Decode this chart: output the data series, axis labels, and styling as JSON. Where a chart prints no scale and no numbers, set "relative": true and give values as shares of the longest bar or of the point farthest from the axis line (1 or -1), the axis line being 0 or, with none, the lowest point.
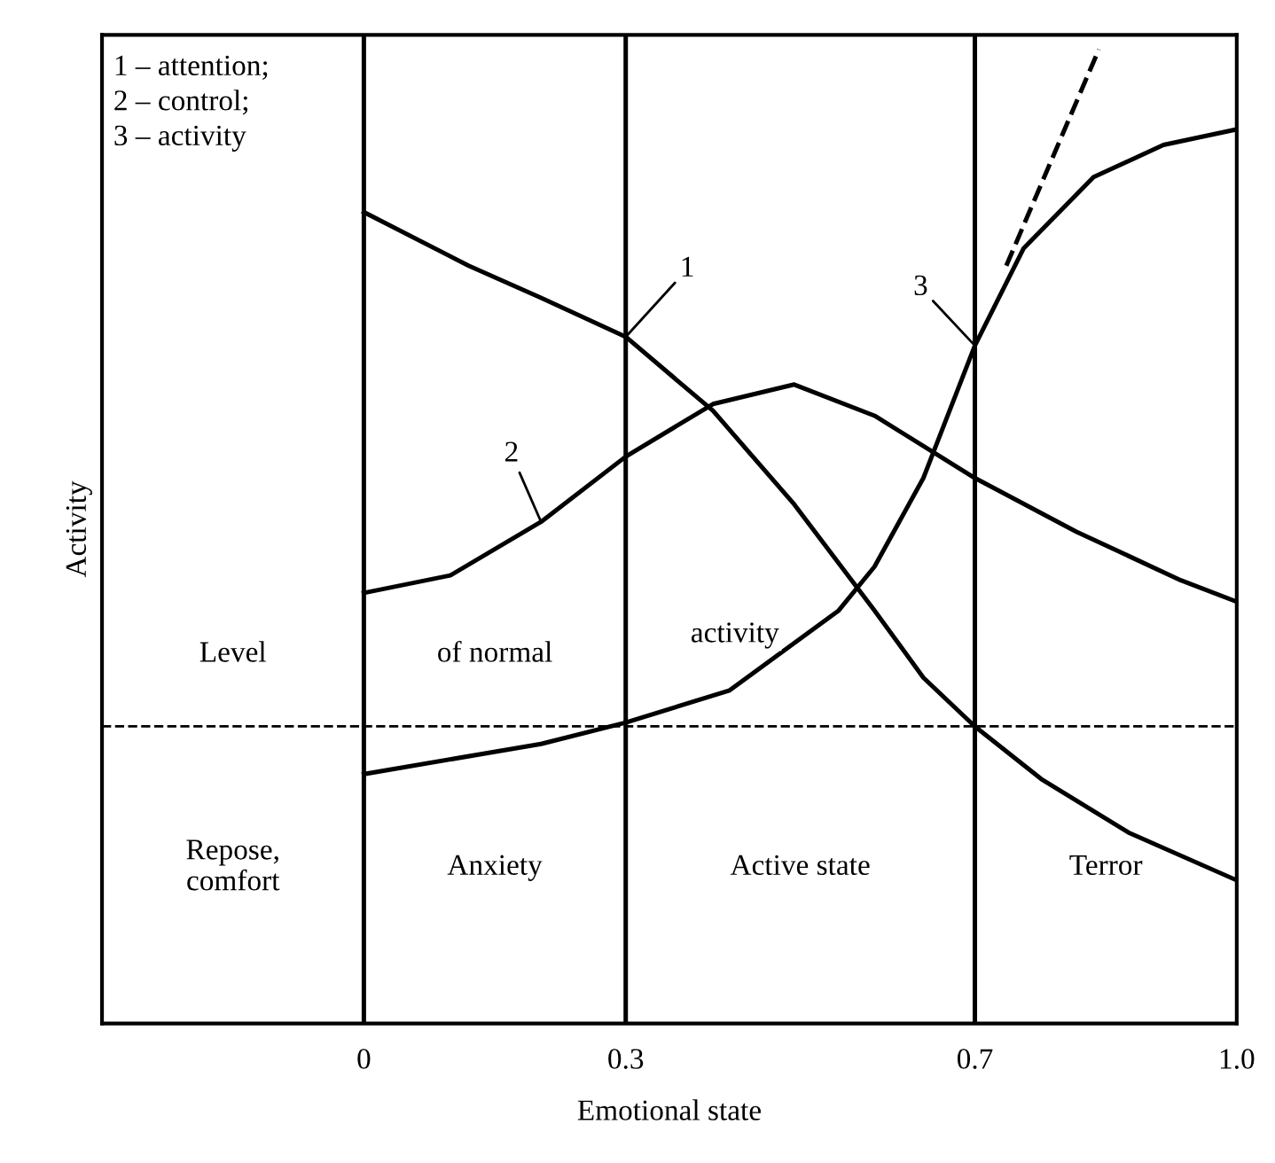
{
  "chart_data": {
    "type": "line",
    "relative": true,
    "xlabel": "Emotional state",
    "ylabel": "Activity",
    "xlim": [
      -0.3,
      1.0
    ],
    "xticks": [
      0,
      0.3,
      0.7,
      {
        "value": 1.0,
        "label": "1.0"
      }
    ],
    "marker": "none",
    "series": [
      {
        "color": "#000000",
        "line_style": "solid",
        "x": [
          0,
          0.12,
          0.203,
          0.3,
          0.4,
          0.493,
          0.585,
          0.641,
          0.7,
          0.776,
          0.876,
          1.0
        ],
        "values": [
          0.833,
          0.778,
          0.745,
          0.705,
          0.629,
          0.533,
          0.424,
          0.355,
          0.305,
          0.251,
          0.196,
          0.147
        ]
      },
      {
        "color": "#000000",
        "line_style": "solid",
        "x": [
          0,
          0.099,
          0.203,
          0.3,
          0.4,
          0.493,
          0.585,
          0.7,
          0.816,
          0.936,
          1.0
        ],
        "values": [
          0.442,
          0.46,
          0.515,
          0.582,
          0.636,
          0.656,
          0.624,
          0.56,
          0.505,
          0.455,
          0.433
        ]
      },
      {
        "color": "#000000",
        "line_style": "solid",
        "x": [
          0,
          0.203,
          0.3,
          0.419,
          0.544,
          0.585,
          0.641,
          0.7,
          0.756,
          0.836,
          0.916,
          1.0
        ],
        "values": [
          0.256,
          0.287,
          0.309,
          0.342,
          0.424,
          0.469,
          0.56,
          0.696,
          0.796,
          0.869,
          0.902,
          0.918
        ]
      },
      {
        "color": "#000000",
        "line_style": "dashed",
        "x": [
          0.736,
          0.842
        ],
        "values": [
          0.778,
          1.0
        ]
      }
    ],
    "ref_lines": [
      {
        "axis": "y",
        "value": 0.305,
        "line_style": "dashed",
        "color": "#000000"
      },
      {
        "axis": "x",
        "value": 0,
        "line_style": "solid",
        "color": "#000000"
      },
      {
        "axis": "x",
        "value": 0.3,
        "line_style": "solid",
        "color": "#000000"
      },
      {
        "axis": "x",
        "value": 0.7,
        "line_style": "solid",
        "color": "#000000"
      }
    ],
    "annotations": [
      "1 – attention;\n2 – control;\n3 – activity",
      "Repose,\ncomfort",
      "Anxiety",
      "Active state",
      "Terror",
      "Level",
      "of normal",
      "activity",
      {
        "text": "1",
        "x": 0.3,
        "y": 0.705
      },
      {
        "text": "2",
        "x": 0.203,
        "y": 0.515
      },
      {
        "text": "3",
        "x": 0.7,
        "y": 0.696
      }
    ]
  }
}
